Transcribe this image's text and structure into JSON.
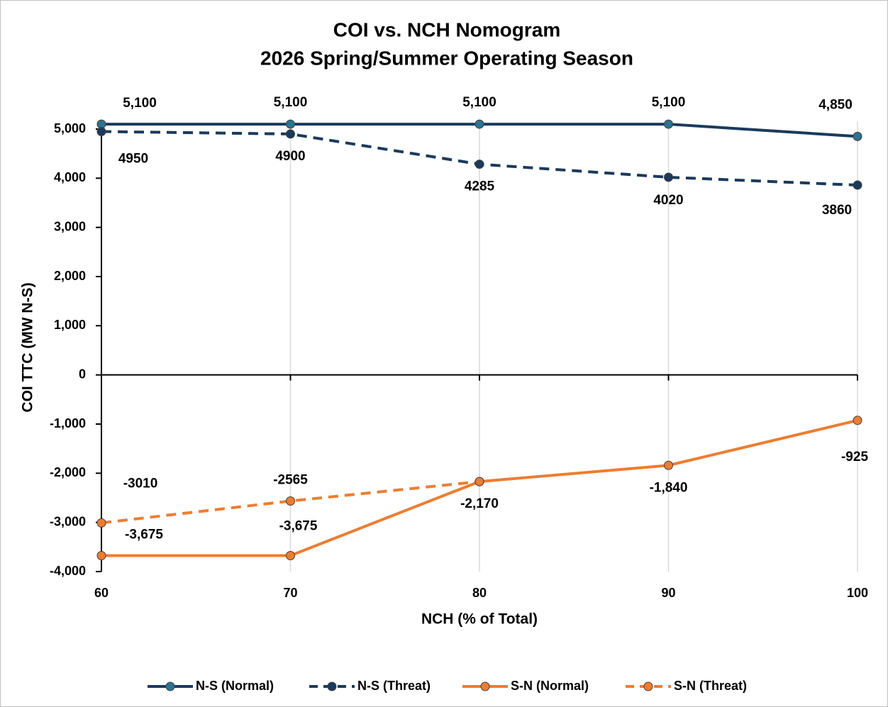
{
  "chart_data": {
    "type": "line",
    "title": "COI vs. NCH Nomogram",
    "subtitle": "2026 Spring/Summer Operating Season",
    "x_label": "NCH (% of Total)",
    "y_label": "COI TTC (MW N-S)",
    "x": [
      60,
      70,
      80,
      90,
      100
    ],
    "xlim": [
      60,
      100
    ],
    "xticks": [
      60,
      70,
      80,
      90,
      100
    ],
    "ylim": [
      -4000,
      5000
    ],
    "yticks": [
      {
        "value": -4000,
        "label": "-4,000"
      },
      {
        "value": -3000,
        "label": "-3,000"
      },
      {
        "value": -2000,
        "label": "-2,000"
      },
      {
        "value": -1000,
        "label": "-1,000"
      },
      0,
      {
        "value": 1000,
        "label": "1,000"
      },
      {
        "value": 2000,
        "label": "2,000"
      },
      {
        "value": 3000,
        "label": "3,000"
      },
      {
        "value": 4000,
        "label": "4,000"
      },
      {
        "value": 5000,
        "label": "5,000"
      }
    ],
    "grid": true,
    "legend": "bottom",
    "series": [
      {
        "name": "N-S (Normal)",
        "color": "#1b3a5c",
        "marker_color": "#2c7391",
        "dashed": false,
        "values": [
          5100,
          5100,
          5100,
          5100,
          4850
        ],
        "value_labels": [
          "5,100",
          "5,100",
          "5,100",
          "5,100",
          "4,850"
        ]
      },
      {
        "name": "N-S (Threat)",
        "color": "#1b3a5c",
        "marker_color": "#1b3a5c",
        "dashed": true,
        "values": [
          4950,
          4900,
          4285,
          4020,
          3860
        ]
      },
      {
        "name": "S-N (Normal)",
        "color": "#ed7d31",
        "marker_color": "#ed7d31",
        "dashed": false,
        "values": [
          -3675,
          -3675,
          -2170,
          -1840,
          -925
        ],
        "value_labels": [
          "-3,675",
          "-3,675",
          "-2,170",
          "-1,840",
          "-925"
        ]
      },
      {
        "name": "S-N (Threat)",
        "color": "#ed7d31",
        "marker_color": "#ed7d31",
        "dashed": true,
        "values": [
          -3010,
          -2565,
          -2170,
          null,
          null
        ],
        "value_labels": [
          "-3010",
          "-2565",
          null,
          null,
          null
        ]
      }
    ]
  }
}
